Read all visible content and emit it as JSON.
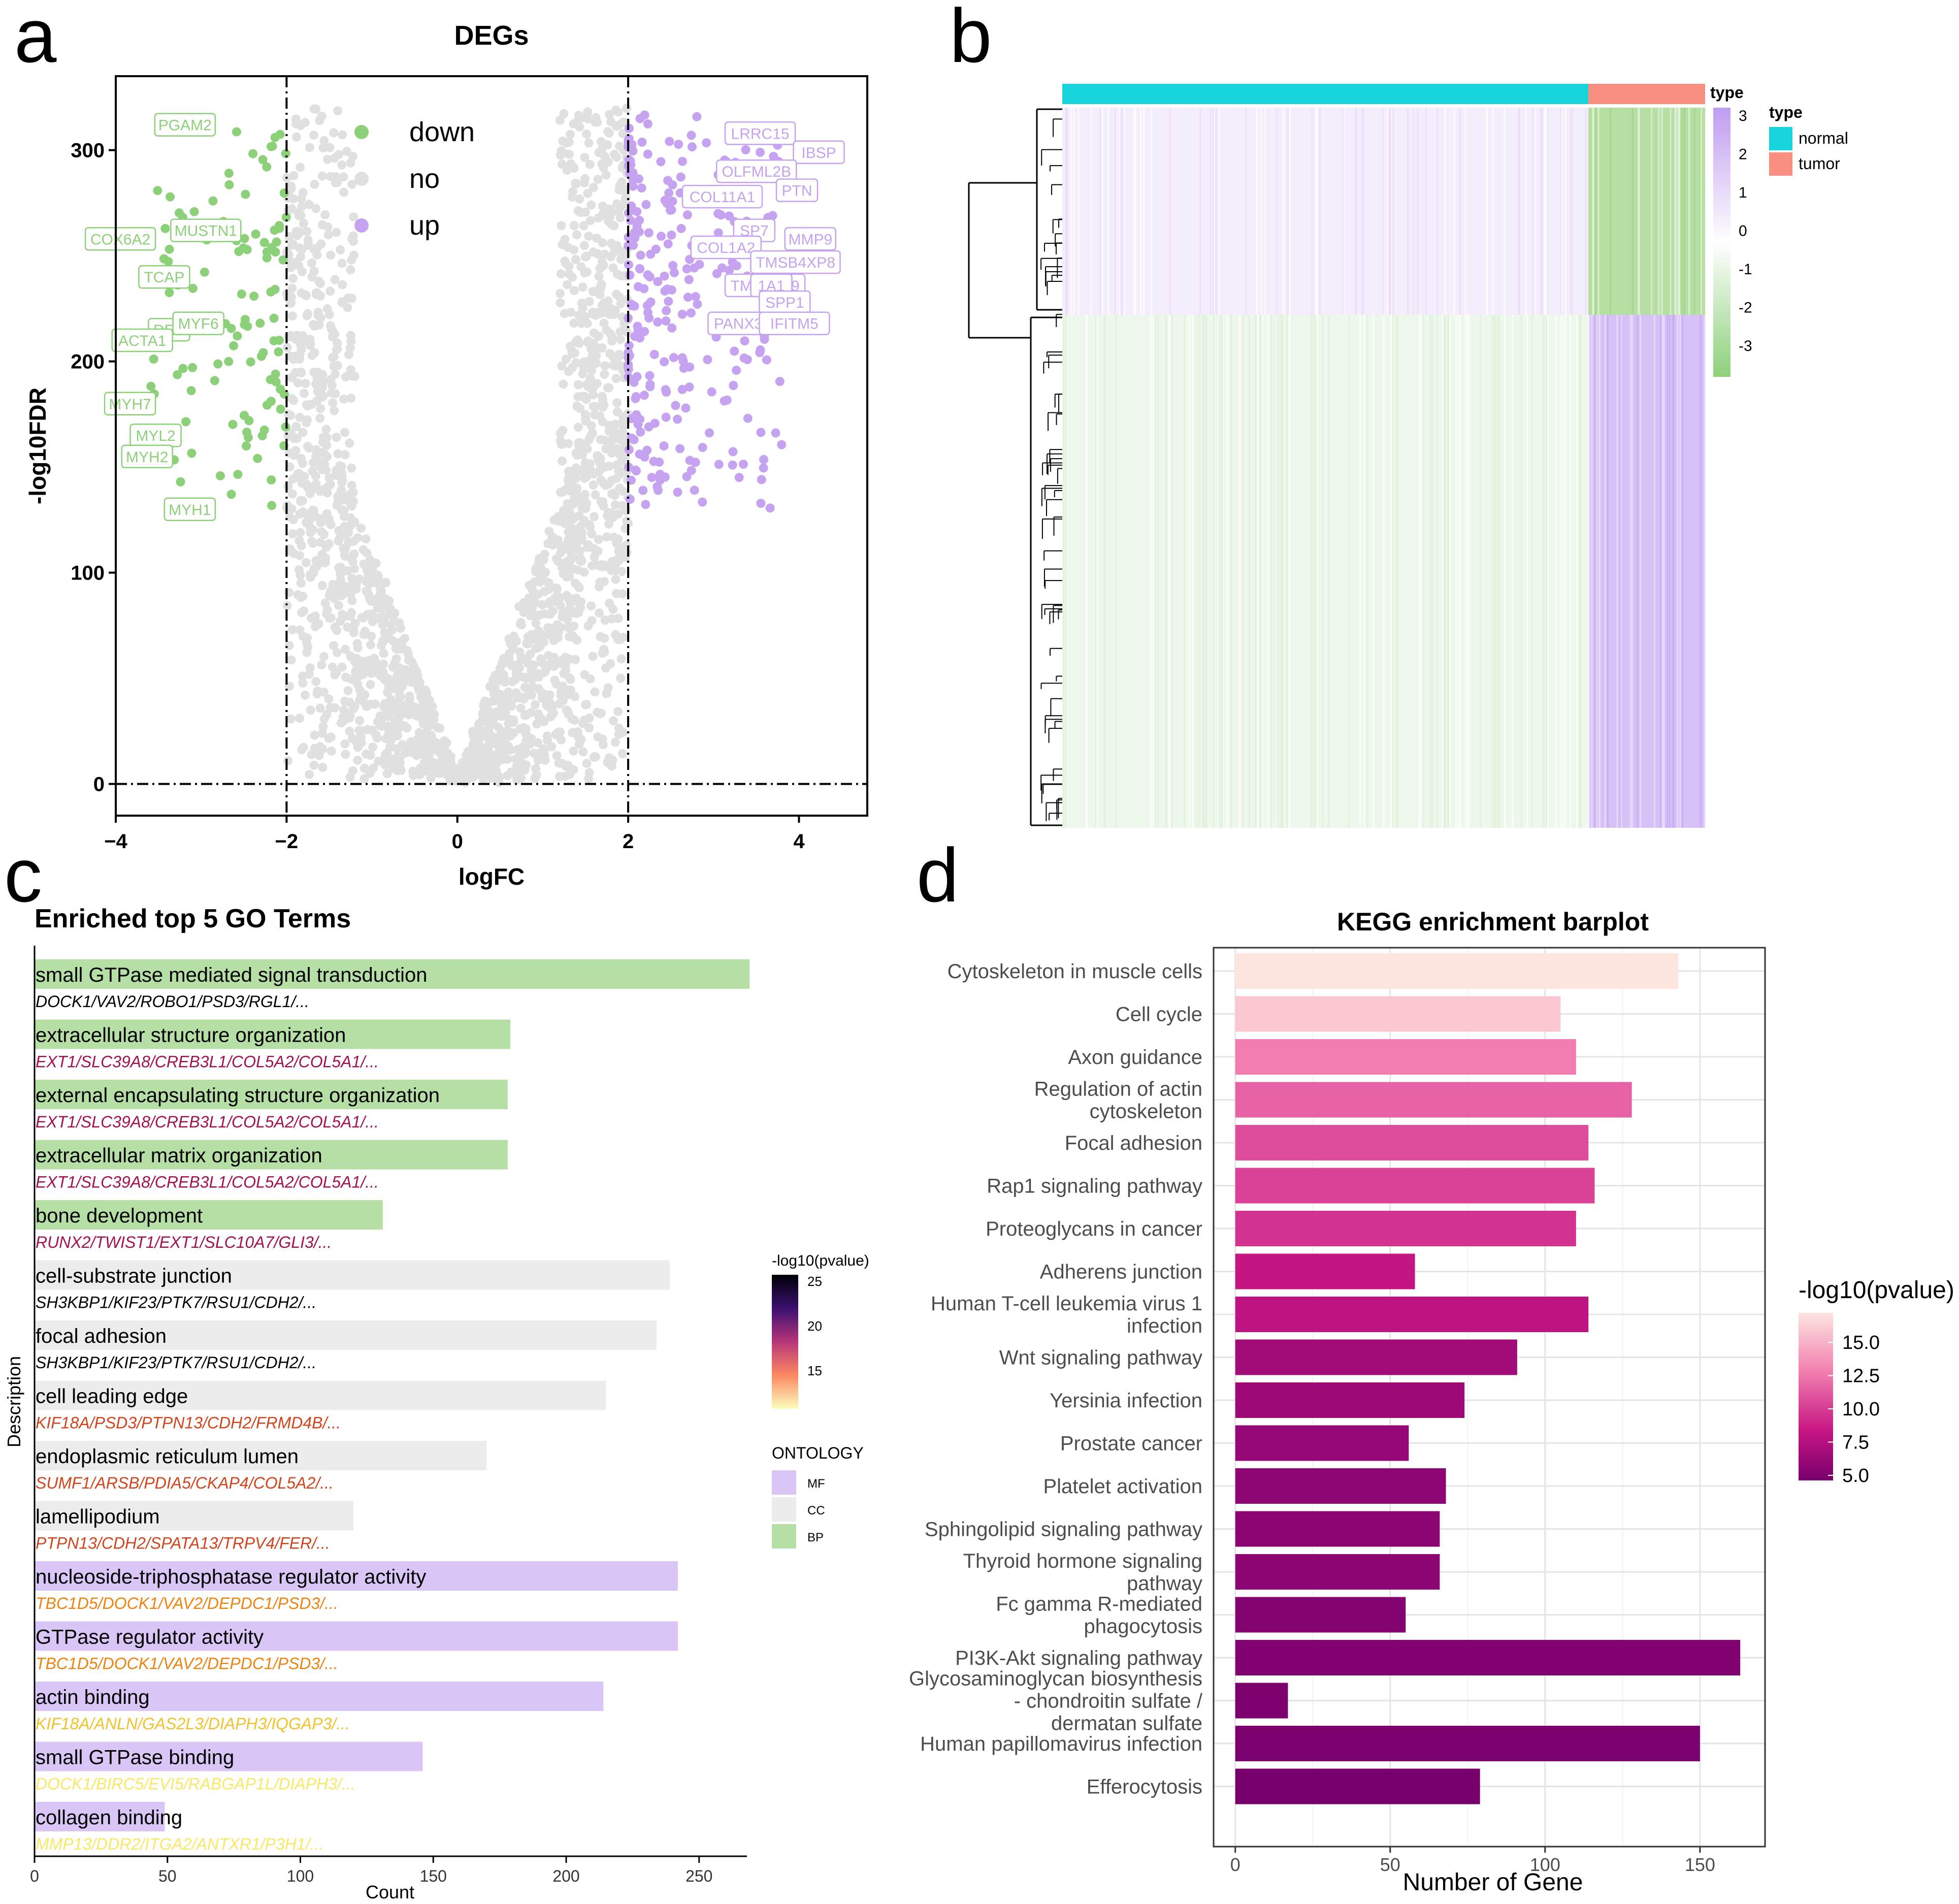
{
  "panel_labels": [
    "a",
    "b",
    "c",
    "d"
  ],
  "chart_data": [
    {
      "panel": "a",
      "type": "scatter",
      "title": "DEGs",
      "xlabel": "logFC",
      "ylabel": "-log10FDR",
      "xlim": [
        -4,
        4.8
      ],
      "ylim": [
        -15,
        335
      ],
      "x_ticks": [
        -4,
        -2,
        0,
        2,
        4
      ],
      "y_ticks": [
        0,
        100,
        200,
        300
      ],
      "x_tick_labels": [
        "−4",
        "−2",
        "0",
        "2",
        "4"
      ],
      "y_tick_labels": [
        "0",
        "100",
        "200",
        "300"
      ],
      "thresholds": {
        "logFC": [
          -2,
          2
        ],
        "neg_log10FDR": 0
      },
      "legend": [
        {
          "label": "down",
          "color": "#8dd07a"
        },
        {
          "label": "no",
          "color": "#e0e0e0"
        },
        {
          "label": "up",
          "color": "#c6a3f0"
        }
      ],
      "labeled_genes_down": [
        {
          "gene": "PGAM2",
          "x": -2.8,
          "y": 312
        },
        {
          "gene": "COX6A2",
          "x": -3.5,
          "y": 258
        },
        {
          "gene": "MUSTN1",
          "x": -2.5,
          "y": 262
        },
        {
          "gene": "TCAP",
          "x": -3.1,
          "y": 240
        },
        {
          "gene": "DES",
          "x": -3.1,
          "y": 215
        },
        {
          "gene": "ACTA1",
          "x": -3.3,
          "y": 210
        },
        {
          "gene": "MYF6",
          "x": -2.7,
          "y": 218
        },
        {
          "gene": "MYH7",
          "x": -3.5,
          "y": 180
        },
        {
          "gene": "MYL2",
          "x": -3.2,
          "y": 165
        },
        {
          "gene": "MYH2",
          "x": -3.3,
          "y": 155
        },
        {
          "gene": "MYH1",
          "x": -2.8,
          "y": 130
        }
      ],
      "labeled_genes_up": [
        {
          "gene": "LRRC15",
          "x": 3.1,
          "y": 308
        },
        {
          "gene": "IBSP",
          "x": 3.9,
          "y": 299
        },
        {
          "gene": "OLFML2B",
          "x": 3.0,
          "y": 290
        },
        {
          "gene": "COL11A1",
          "x": 2.6,
          "y": 278
        },
        {
          "gene": "PTN",
          "x": 3.7,
          "y": 281
        },
        {
          "gene": "MMP9",
          "x": 3.8,
          "y": 258
        },
        {
          "gene": "SP7",
          "x": 3.2,
          "y": 262
        },
        {
          "gene": "COL1A2",
          "x": 2.7,
          "y": 254
        },
        {
          "gene": "TMSB4XP8",
          "x": 3.4,
          "y": 247
        },
        {
          "gene": "TMEM119",
          "x": 3.1,
          "y": 236
        },
        {
          "gene": "1A1",
          "x": 3.4,
          "y": 236
        },
        {
          "gene": "SPP1",
          "x": 3.5,
          "y": 228
        },
        {
          "gene": "PANX3",
          "x": 2.9,
          "y": 218
        },
        {
          "gene": "IFITM5",
          "x": 3.5,
          "y": 218
        }
      ]
    },
    {
      "panel": "b",
      "type": "heatmap",
      "annotation_title": "type",
      "groups": [
        {
          "label": "normal",
          "color": "#18d4dc"
        },
        {
          "label": "tumor",
          "color": "#f88f80"
        }
      ],
      "colorbar_ticks": [
        3,
        2,
        1,
        0,
        -1,
        -2,
        -3
      ],
      "colorbar_labels": [
        "3",
        "2",
        "1",
        "0",
        "-1",
        "-2",
        "-3"
      ]
    },
    {
      "panel": "c",
      "type": "bar",
      "title": "Enriched top 5 GO Terms",
      "xlabel": "Count",
      "ylabel": "Description",
      "xlim": [
        0,
        268
      ],
      "x_ticks": [
        0,
        50,
        100,
        150,
        200,
        250
      ],
      "categories": [
        "small GTPase mediated signal transduction",
        "extracellular structure organization",
        "external encapsulating structure organization",
        "extracellular matrix organization",
        "bone development",
        "cell-substrate junction",
        "focal adhesion",
        "cell leading edge",
        "endoplasmic reticulum lumen",
        "lamellipodium",
        "nucleoside-triphosphatase regulator activity",
        "GTPase regulator activity",
        "actin binding",
        "small GTPase binding",
        "collagen binding"
      ],
      "values": [
        269,
        179,
        178,
        178,
        131,
        239,
        234,
        215,
        170,
        120,
        242,
        242,
        214,
        146,
        49
      ],
      "ontology": [
        "BP",
        "BP",
        "BP",
        "BP",
        "BP",
        "CC",
        "CC",
        "CC",
        "CC",
        "CC",
        "MF",
        "MF",
        "MF",
        "MF",
        "MF"
      ],
      "genes": [
        "DOCK1/VAV2/ROBO1/PSD3/RGL1/...",
        "EXT1/SLC39A8/CREB3L1/COL5A2/COL5A1/...",
        "EXT1/SLC39A8/CREB3L1/COL5A2/COL5A1/...",
        "EXT1/SLC39A8/CREB3L1/COL5A2/COL5A1/...",
        "RUNX2/TWIST1/EXT1/SLC10A7/GLI3/...",
        "SH3KBP1/KIF23/PTK7/RSU1/CDH2/...",
        "SH3KBP1/KIF23/PTK7/RSU1/CDH2/...",
        "KIF18A/PSD3/PTPN13/CDH2/FRMD4B/...",
        "SUMF1/ARSB/PDIA5/CKAP4/COL5A2/...",
        "PTPN13/CDH2/SPATA13/TRPV4/FER/...",
        "TBC1D5/DOCK1/VAV2/DEPDC1/PSD3/...",
        "TBC1D5/DOCK1/VAV2/DEPDC1/PSD3/...",
        "KIF18A/ANLN/GAS2L3/DIAPH3/IQGAP3/...",
        "DOCK1/BIRC5/EVI5/RABGAP1L/DIAPH3/...",
        "MMP13/DDR2/ITGA2/ANTXR1/P3H1/..."
      ],
      "gene_colors": [
        "#000000",
        "#a2124f",
        "#a2124f",
        "#a2124f",
        "#a2124f",
        "#000000",
        "#000000",
        "#d2441c",
        "#d2441c",
        "#d2441c",
        "#ee8310",
        "#ee8310",
        "#f2c12e",
        "#f9e866",
        "#f9e866"
      ],
      "ontology_colors": {
        "BP": "#b5dfa5",
        "CC": "#ececec",
        "MF": "#d9c6f7"
      },
      "pvalue_legend_title": "-log10(pvalue)",
      "pvalue_ticks": [
        25,
        20,
        15
      ],
      "pvalue_tick_labels": [
        "25",
        "20",
        "15"
      ],
      "ontology_legend_title": "ONTOLOGY",
      "ontology_legend": [
        "MF",
        "CC",
        "BP"
      ]
    },
    {
      "panel": "d",
      "type": "bar",
      "title": "KEGG enrichment barplot",
      "xlabel": "Number of Gene",
      "xlim": [
        -7,
        171
      ],
      "x_ticks": [
        0,
        50,
        100,
        150
      ],
      "categories": [
        "Cytoskeleton in muscle cells",
        "Cell cycle",
        "Axon guidance",
        "Regulation of actin cytoskeleton",
        "Focal adhesion",
        "Rap1 signaling pathway",
        "Proteoglycans in cancer",
        "Adherens junction",
        "Human T-cell leukemia virus 1 infection",
        "Wnt signaling pathway",
        "Yersinia infection",
        "Prostate cancer",
        "Platelet activation",
        "Sphingolipid signaling pathway",
        "Thyroid hormone signaling pathway",
        "Fc gamma R-mediated phagocytosis",
        "PI3K-Akt signaling pathway",
        "Glycosaminoglycan biosynthesis - chondroitin sulfate / dermatan sulfate",
        "Human papillomavirus infection",
        "Efferocytosis"
      ],
      "label_lines": [
        [
          "Cytoskeleton in muscle cells"
        ],
        [
          "Cell cycle"
        ],
        [
          "Axon guidance"
        ],
        [
          "Regulation of actin",
          "cytoskeleton"
        ],
        [
          "Focal adhesion"
        ],
        [
          "Rap1 signaling pathway"
        ],
        [
          "Proteoglycans in cancer"
        ],
        [
          "Adherens junction"
        ],
        [
          "Human T-cell leukemia virus 1",
          "infection"
        ],
        [
          "Wnt signaling pathway"
        ],
        [
          "Yersinia infection"
        ],
        [
          "Prostate cancer"
        ],
        [
          "Platelet activation"
        ],
        [
          "Sphingolipid signaling pathway"
        ],
        [
          "Thyroid hormone signaling",
          "pathway"
        ],
        [
          "Fc gamma R-mediated",
          "phagocytosis"
        ],
        [
          "PI3K-Akt signaling pathway"
        ],
        [
          "Glycosaminoglycan biosynthesis",
          "- chondroitin sulfate /",
          "dermatan sulfate"
        ],
        [
          "Human papillomavirus infection"
        ],
        [
          "Efferocytosis"
        ]
      ],
      "values": [
        143,
        105,
        110,
        128,
        114,
        116,
        110,
        58,
        114,
        91,
        74,
        56,
        68,
        66,
        66,
        55,
        163,
        17,
        150,
        79
      ],
      "neg_log10_pvalue": [
        17.0,
        15.6,
        12.1,
        11.2,
        10.5,
        10.1,
        9.6,
        8.5,
        8.2,
        6.9,
        6.7,
        6.3,
        6.0,
        5.9,
        5.9,
        5.5,
        5.4,
        5.2,
        5.1,
        5.0
      ],
      "legend_title": "-log10(pvalue)",
      "legend_ticks": [
        15.0,
        12.5,
        10.0,
        7.5,
        5.0
      ],
      "legend_tick_labels": [
        "15.0",
        "12.5",
        "10.0",
        "7.5",
        "5.0"
      ]
    }
  ]
}
